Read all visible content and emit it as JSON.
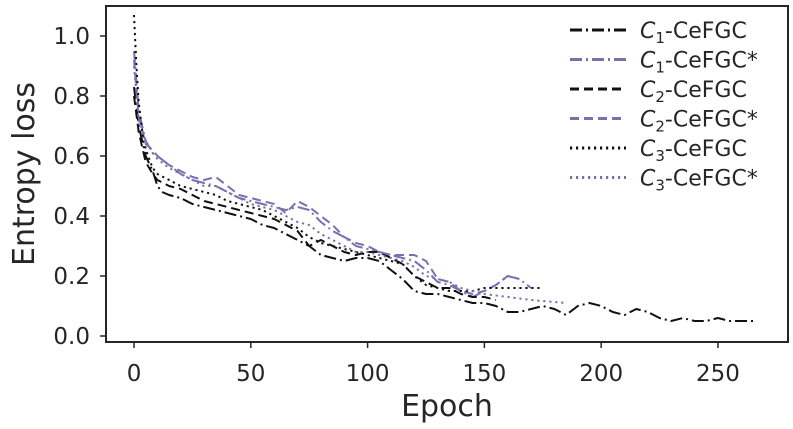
{
  "chart_data": {
    "type": "line",
    "title": "",
    "xlabel": "Epoch",
    "ylabel": "Entropy loss",
    "xlim": [
      -12,
      280
    ],
    "ylim": [
      -0.02,
      1.1
    ],
    "xticks": [
      0,
      50,
      100,
      150,
      200,
      250
    ],
    "yticks": [
      0.0,
      0.2,
      0.4,
      0.6,
      0.8,
      1.0
    ],
    "xtick_labels": [
      "0",
      "50",
      "100",
      "150",
      "200",
      "250"
    ],
    "ytick_labels": [
      "0.0",
      "0.2",
      "0.4",
      "0.6",
      "0.8",
      "1.0"
    ],
    "grid": false,
    "legend_position": "top-right",
    "series": [
      {
        "id": "c1",
        "label_main": "C",
        "label_sub": "1",
        "label_suffix": "-CeFGC",
        "color": "#111111",
        "dash": "dashdot",
        "x": [
          0,
          2,
          5,
          8,
          10,
          12,
          15,
          20,
          25,
          30,
          35,
          40,
          45,
          50,
          55,
          60,
          65,
          70,
          75,
          80,
          85,
          90,
          95,
          100,
          105,
          110,
          115,
          120,
          125,
          130,
          135,
          140,
          145,
          150,
          155,
          160,
          165,
          170,
          175,
          180,
          185,
          190,
          195,
          200,
          205,
          210,
          215,
          220,
          225,
          230,
          235,
          240,
          245,
          250,
          255,
          260,
          265
        ],
        "y": [
          0.83,
          0.7,
          0.6,
          0.55,
          0.5,
          0.48,
          0.47,
          0.46,
          0.44,
          0.43,
          0.42,
          0.41,
          0.4,
          0.39,
          0.37,
          0.36,
          0.34,
          0.32,
          0.3,
          0.27,
          0.26,
          0.25,
          0.26,
          0.26,
          0.25,
          0.22,
          0.19,
          0.15,
          0.14,
          0.14,
          0.13,
          0.12,
          0.11,
          0.11,
          0.1,
          0.08,
          0.08,
          0.09,
          0.1,
          0.09,
          0.07,
          0.1,
          0.11,
          0.1,
          0.08,
          0.07,
          0.09,
          0.08,
          0.06,
          0.05,
          0.06,
          0.05,
          0.05,
          0.06,
          0.05,
          0.05,
          0.05
        ]
      },
      {
        "id": "c1s",
        "label_main": "C",
        "label_sub": "1",
        "label_suffix": "-CeFGC*",
        "color": "#7b6fb0",
        "dash": "dashdot",
        "x": [
          0,
          2,
          5,
          8,
          10,
          15,
          20,
          25,
          30,
          35,
          40,
          45,
          50,
          55,
          60,
          65,
          70,
          75,
          80,
          85,
          90,
          95,
          100,
          105,
          110,
          115,
          120,
          125,
          130,
          135,
          140,
          145,
          150,
          155,
          160,
          165,
          170
        ],
        "y": [
          0.95,
          0.75,
          0.65,
          0.61,
          0.6,
          0.57,
          0.54,
          0.52,
          0.51,
          0.5,
          0.48,
          0.46,
          0.45,
          0.44,
          0.43,
          0.42,
          0.43,
          0.42,
          0.38,
          0.35,
          0.33,
          0.3,
          0.29,
          0.28,
          0.27,
          0.26,
          0.25,
          0.22,
          0.18,
          0.17,
          0.15,
          0.13,
          0.15,
          0.17,
          0.2,
          0.19,
          0.16
        ]
      },
      {
        "id": "c2",
        "label_main": "C",
        "label_sub": "2",
        "label_suffix": "-CeFGC",
        "color": "#111111",
        "dash": "dashed",
        "x": [
          0,
          2,
          5,
          8,
          10,
          15,
          20,
          25,
          30,
          35,
          40,
          45,
          50,
          55,
          60,
          65,
          70,
          75,
          80,
          85,
          90,
          95,
          100,
          105,
          110,
          115,
          120,
          125,
          130,
          135,
          140,
          145,
          150,
          155
        ],
        "y": [
          0.8,
          0.68,
          0.58,
          0.54,
          0.52,
          0.5,
          0.49,
          0.47,
          0.45,
          0.44,
          0.43,
          0.42,
          0.41,
          0.4,
          0.39,
          0.37,
          0.35,
          0.3,
          0.32,
          0.3,
          0.28,
          0.27,
          0.28,
          0.28,
          0.26,
          0.24,
          0.2,
          0.18,
          0.16,
          0.16,
          0.14,
          0.13,
          0.13,
          0.12
        ]
      },
      {
        "id": "c2s",
        "label_main": "C",
        "label_sub": "2",
        "label_suffix": "-CeFGC*",
        "color": "#7b6fb0",
        "dash": "dashed",
        "x": [
          0,
          2,
          5,
          8,
          10,
          15,
          20,
          25,
          30,
          35,
          40,
          45,
          50,
          55,
          60,
          65,
          70,
          75,
          80,
          85,
          90,
          95,
          100,
          105,
          110,
          115,
          120,
          125,
          130,
          135,
          140,
          145,
          150,
          155,
          160,
          165
        ],
        "y": [
          0.92,
          0.73,
          0.64,
          0.62,
          0.6,
          0.57,
          0.55,
          0.53,
          0.52,
          0.53,
          0.5,
          0.47,
          0.46,
          0.45,
          0.44,
          0.41,
          0.45,
          0.43,
          0.4,
          0.37,
          0.33,
          0.31,
          0.3,
          0.28,
          0.27,
          0.27,
          0.27,
          0.25,
          0.19,
          0.18,
          0.15,
          0.14,
          0.15,
          0.17,
          0.2,
          0.19
        ]
      },
      {
        "id": "c3",
        "label_main": "C",
        "label_sub": "3",
        "label_suffix": "-CeFGC",
        "color": "#111111",
        "dash": "dotted",
        "x": [
          0,
          1,
          2,
          4,
          6,
          8,
          10,
          15,
          20,
          25,
          30,
          35,
          40,
          45,
          50,
          55,
          60,
          65,
          70,
          75,
          80,
          85,
          90,
          95,
          100,
          105,
          110,
          115,
          120,
          125,
          130,
          135,
          140,
          145,
          150,
          160,
          175
        ],
        "y": [
          1.07,
          0.9,
          0.78,
          0.65,
          0.6,
          0.56,
          0.54,
          0.52,
          0.5,
          0.49,
          0.48,
          0.47,
          0.45,
          0.44,
          0.43,
          0.42,
          0.4,
          0.38,
          0.36,
          0.33,
          0.31,
          0.3,
          0.29,
          0.28,
          0.27,
          0.26,
          0.25,
          0.24,
          0.2,
          0.17,
          0.16,
          0.15,
          0.15,
          0.15,
          0.16,
          0.16,
          0.16
        ]
      },
      {
        "id": "c3s",
        "label_main": "C",
        "label_sub": "3",
        "label_suffix": "-CeFGC*",
        "color": "#7b6fb0",
        "dash": "dotted",
        "x": [
          0,
          2,
          5,
          8,
          10,
          15,
          20,
          25,
          30,
          35,
          40,
          45,
          50,
          55,
          60,
          65,
          70,
          75,
          80,
          85,
          90,
          95,
          100,
          105,
          110,
          115,
          120,
          125,
          130,
          135,
          140,
          145,
          150,
          160,
          170,
          185
        ],
        "y": [
          0.9,
          0.72,
          0.65,
          0.61,
          0.59,
          0.56,
          0.54,
          0.52,
          0.5,
          0.5,
          0.48,
          0.46,
          0.44,
          0.43,
          0.42,
          0.4,
          0.38,
          0.37,
          0.34,
          0.32,
          0.3,
          0.28,
          0.28,
          0.27,
          0.26,
          0.25,
          0.23,
          0.2,
          0.19,
          0.18,
          0.16,
          0.15,
          0.14,
          0.13,
          0.12,
          0.11
        ]
      }
    ]
  }
}
